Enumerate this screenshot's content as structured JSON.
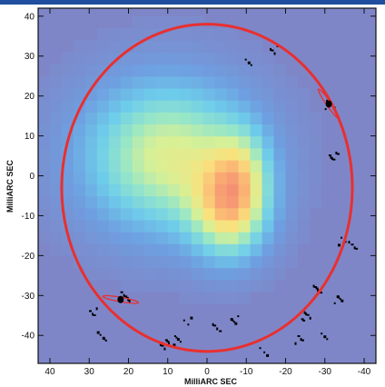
{
  "chart_data": {
    "type": "heatmap",
    "xlabel": "MilliARC SEC",
    "ylabel": "MilliARC SEC",
    "xlim": [
      43,
      -43
    ],
    "ylim": [
      -47,
      42
    ],
    "xticks": [
      40,
      30,
      20,
      10,
      0,
      -10,
      -20,
      -30,
      -40
    ],
    "yticks": [
      40,
      30,
      20,
      10,
      0,
      -10,
      -20,
      -30,
      -40
    ],
    "background_color": "#7f86c8",
    "ring": {
      "center_x": 0,
      "center_y": -3,
      "radius_x": 37,
      "radius_y": 41,
      "color": "#e83030"
    },
    "blobs": [
      {
        "x": 10,
        "y": 5,
        "sigma_x": 16,
        "sigma_y": 14,
        "amplitude": 0.62
      },
      {
        "x": -6,
        "y": -9,
        "sigma_x": 7,
        "sigma_y": 9,
        "amplitude": 0.55
      },
      {
        "x": -9,
        "y": 2,
        "sigma_x": 5,
        "sigma_y": 8,
        "amplitude": 0.25
      }
    ],
    "noise_spots": [
      {
        "x": -10,
        "y": 29
      },
      {
        "x": -17,
        "y": 32
      },
      {
        "x": -31,
        "y": 18
      },
      {
        "x": -32,
        "y": 5
      },
      {
        "x": -34,
        "y": -16
      },
      {
        "x": -37,
        "y": -17
      },
      {
        "x": -33,
        "y": -31
      },
      {
        "x": 21,
        "y": -30
      },
      {
        "x": 5,
        "y": -36
      },
      {
        "x": -2,
        "y": -38
      },
      {
        "x": -7,
        "y": -36
      },
      {
        "x": -25,
        "y": -35
      },
      {
        "x": -30,
        "y": -40
      },
      {
        "x": -23,
        "y": -41
      },
      {
        "x": 27,
        "y": -40
      },
      {
        "x": 11,
        "y": -42
      },
      {
        "x": -14,
        "y": -44
      },
      {
        "x": 29,
        "y": -34
      },
      {
        "x": 8,
        "y": -41
      },
      {
        "x": -28,
        "y": -28
      }
    ],
    "flares": [
      {
        "x": -31,
        "y": 18
      },
      {
        "x": 22,
        "y": -31
      }
    ]
  }
}
